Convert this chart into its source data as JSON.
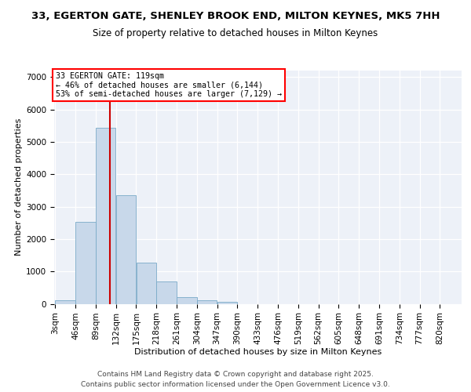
{
  "title_line1": "33, EGERTON GATE, SHENLEY BROOK END, MILTON KEYNES, MK5 7HH",
  "title_line2": "Size of property relative to detached houses in Milton Keynes",
  "xlabel": "Distribution of detached houses by size in Milton Keynes",
  "ylabel": "Number of detached properties",
  "bar_color": "#c8d8ea",
  "bar_edge_color": "#7aaac8",
  "background_color": "#edf1f8",
  "vline_color": "#cc0000",
  "annotation_text": "33 EGERTON GATE: 119sqm\n← 46% of detached houses are smaller (6,144)\n53% of semi-detached houses are larger (7,129) →",
  "bin_edges": [
    3,
    46,
    89,
    132,
    175,
    218,
    261,
    304,
    347,
    390,
    433,
    476,
    519,
    562,
    605,
    648,
    691,
    734,
    777,
    820,
    863
  ],
  "bar_heights": [
    100,
    2520,
    5430,
    3350,
    1260,
    700,
    200,
    120,
    60,
    0,
    0,
    0,
    0,
    0,
    0,
    0,
    0,
    0,
    0,
    0
  ],
  "vline_x": 119,
  "ylim": [
    0,
    7200
  ],
  "yticks": [
    0,
    1000,
    2000,
    3000,
    4000,
    5000,
    6000,
    7000
  ],
  "footer_text": "Contains HM Land Registry data © Crown copyright and database right 2025.\nContains public sector information licensed under the Open Government Licence v3.0."
}
